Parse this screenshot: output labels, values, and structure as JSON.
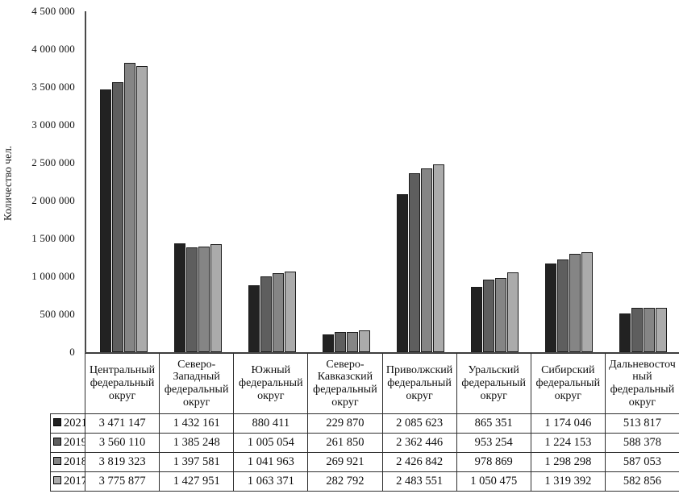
{
  "chart_data": {
    "type": "bar",
    "title": "",
    "xlabel": "",
    "ylabel": "Количество чел.",
    "ylim": [
      0,
      4500000
    ],
    "ytick_step": 500000,
    "ytick_labels": [
      "4 500 000",
      "4 000 000",
      "3 500 000",
      "3 000 000",
      "2 500 000",
      "2 000 000",
      "1 500 000",
      "1 000 000",
      "500 000",
      "0"
    ],
    "grid": false,
    "legend_position": "table-row-headers",
    "categories": [
      "Центральный федеральный округ",
      "Северо-Западный федеральный округ",
      "Южный федеральный округ",
      "Северо-Кавказский федеральный округ",
      "Приволжский федеральный округ",
      "Уральский федеральный округ",
      "Сибирский федеральный округ",
      "Дальневосточный федеральный округ"
    ],
    "series": [
      {
        "name": "2021",
        "color": "#222222",
        "values": [
          3471147,
          1432161,
          880411,
          229870,
          2085623,
          865351,
          1174046,
          513817
        ]
      },
      {
        "name": "2019",
        "color": "#5e5e5e",
        "values": [
          3560110,
          1385248,
          1005054,
          261850,
          2362446,
          953254,
          1224153,
          588378
        ]
      },
      {
        "name": "2018",
        "color": "#858585",
        "values": [
          3819323,
          1397581,
          1041963,
          269921,
          2426842,
          978869,
          1298298,
          587053
        ]
      },
      {
        "name": "2017",
        "color": "#ababab",
        "values": [
          3775877,
          1427951,
          1063371,
          282792,
          2483551,
          1050475,
          1319392,
          582856
        ]
      }
    ]
  }
}
